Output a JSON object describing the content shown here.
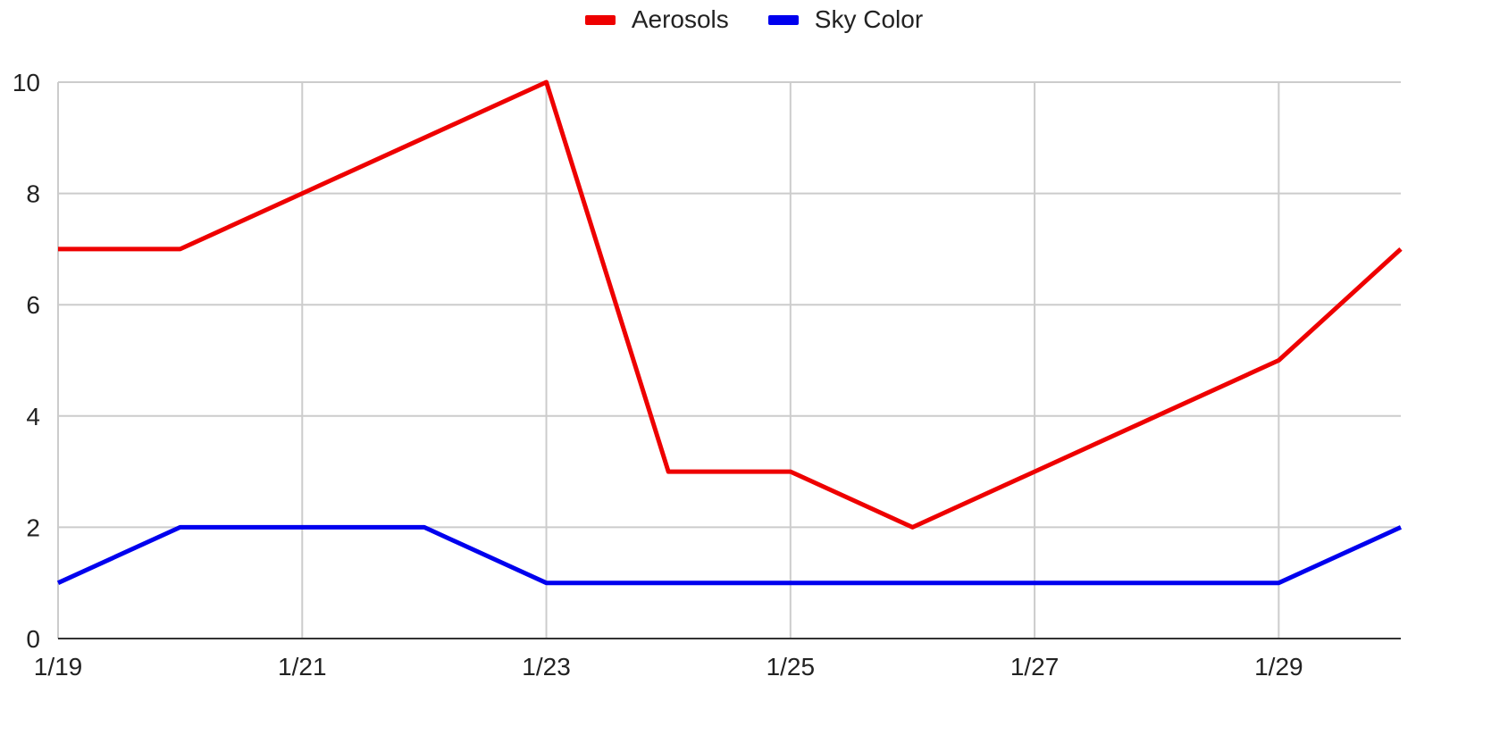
{
  "chart_data": {
    "type": "line",
    "x_labels": [
      "1/19",
      "1/21",
      "1/23",
      "1/25",
      "1/27",
      "1/29"
    ],
    "x": [
      "1/19",
      "1/20",
      "1/21",
      "1/22",
      "1/23",
      "1/24",
      "1/25",
      "1/26",
      "1/27",
      "1/28",
      "1/29",
      "1/30"
    ],
    "series": [
      {
        "name": "Aerosols",
        "color": "#ee0000",
        "values": [
          7,
          7,
          8,
          9,
          10,
          3,
          3,
          2,
          3,
          4,
          5,
          7
        ]
      },
      {
        "name": "Sky Color",
        "color": "#0000ee",
        "values": [
          1,
          2,
          2,
          2,
          1,
          1,
          1,
          1,
          1,
          1,
          1,
          2
        ]
      }
    ],
    "y_ticks": [
      "0",
      "2",
      "4",
      "6",
      "8",
      "10"
    ],
    "ylim": [
      0,
      10
    ],
    "grid": true,
    "legend_position": "top-center"
  }
}
